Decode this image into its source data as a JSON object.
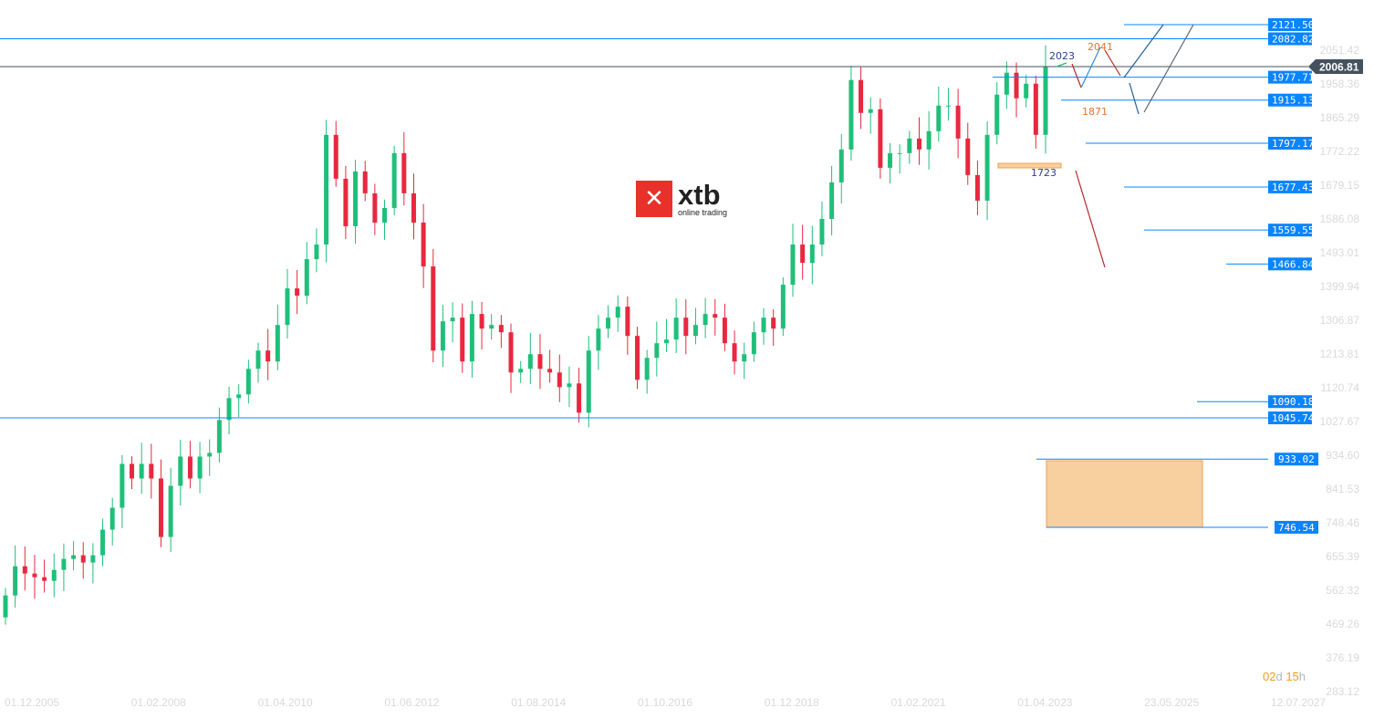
{
  "chart_data": {
    "type": "candlestick",
    "instrument_logo": "xtb online trading",
    "x_tick_labels": [
      "01.12.2005",
      "01.02.2008",
      "01.04.2010",
      "01.06.2012",
      "01.08.2014",
      "01.10.2016",
      "01.12.2018",
      "01.02.2021",
      "01.04.2023",
      "23.05.2025",
      "12.07.2027"
    ],
    "y_tick_labels": [
      "2051.42",
      "1958.36",
      "1865.29",
      "1772.22",
      "1679.15",
      "1586.08",
      "1493.01",
      "1399.94",
      "1306.87",
      "1213.81",
      "1120.74",
      "1027.67",
      "934.60",
      "841.53",
      "748.46",
      "655.39",
      "562.32",
      "469.26",
      "376.19",
      "283.12"
    ],
    "ylim": [
      283.12,
      2121.5
    ],
    "closes": [
      560,
      640,
      620,
      610,
      600,
      630,
      660,
      670,
      650,
      670,
      740,
      800,
      920,
      880,
      920,
      880,
      720,
      860,
      940,
      880,
      940,
      950,
      1040,
      1100,
      1110,
      1180,
      1230,
      1200,
      1300,
      1400,
      1380,
      1480,
      1520,
      1820,
      1700,
      1570,
      1720,
      1660,
      1580,
      1620,
      1770,
      1660,
      1580,
      1460,
      1230,
      1310,
      1320,
      1200,
      1330,
      1290,
      1300,
      1280,
      1170,
      1180,
      1220,
      1180,
      1170,
      1130,
      1140,
      1060,
      1230,
      1290,
      1320,
      1350,
      1270,
      1150,
      1210,
      1250,
      1260,
      1320,
      1270,
      1300,
      1330,
      1320,
      1250,
      1200,
      1220,
      1280,
      1320,
      1290,
      1410,
      1520,
      1470,
      1520,
      1590,
      1690,
      1780,
      1970,
      1880,
      1890,
      1730,
      1770,
      1770,
      1810,
      1780,
      1830,
      1900,
      1900,
      1810,
      1710,
      1640,
      1820,
      1930,
      1990,
      1920,
      1960,
      1820,
      2006
    ],
    "first_open": 500,
    "current_price": "2006.81",
    "levels": [
      "2121.50",
      "2082.82",
      "1977.71",
      "1915.13",
      "1797.17",
      "1677.43",
      "1559.55",
      "1466.84",
      "1090.18",
      "1045.74",
      "933.02",
      "746.54"
    ],
    "zones": [
      {
        "from": 746.54,
        "to": 933.02
      },
      {
        "from": 1723,
        "to": 1735
      }
    ],
    "annotations": [
      {
        "text": "2023",
        "color": "#2c3e8c"
      },
      {
        "text": "2041",
        "color": "#e8742a"
      },
      {
        "text": "1871",
        "color": "#e8742a"
      },
      {
        "text": "1723",
        "color": "#2c3e8c"
      }
    ],
    "colors": {
      "up": "#1fbf7a",
      "down": "#e8283f",
      "level": "#0a84ff",
      "zone": "#f8cf9f",
      "current": "#45525e"
    }
  },
  "countdown": {
    "days": "02",
    "d": "d",
    "hours": "15",
    "h": "h"
  }
}
